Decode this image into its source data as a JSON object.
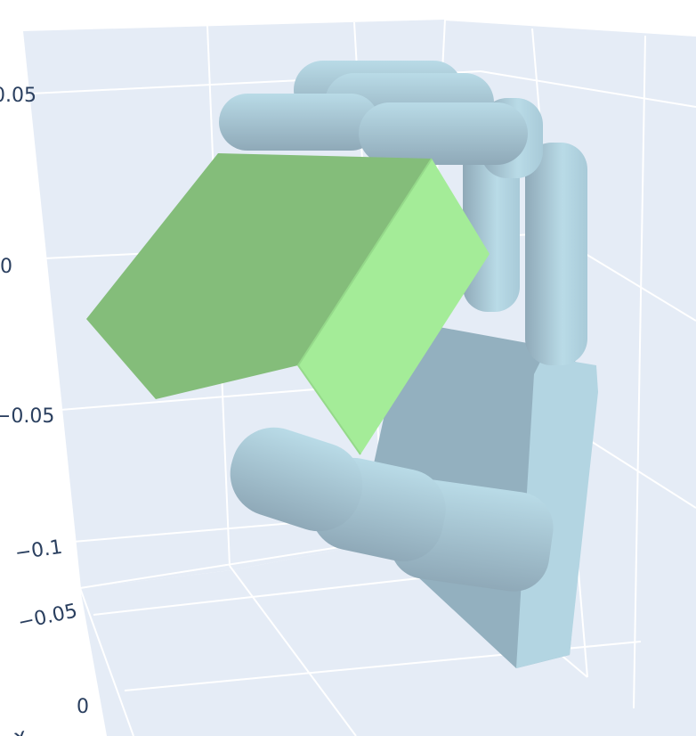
{
  "chart_data": {
    "type": "3d-mesh",
    "title": "",
    "background_color": "#e5ecf6",
    "grid_color": "#ffffff",
    "grid": true,
    "axes": {
      "x": {
        "title": "x",
        "tick_labels": [
          "−0.05",
          "0"
        ]
      },
      "z": {
        "tick_labels": [
          "0.05",
          "0",
          "−0.05",
          "−0.1"
        ]
      }
    },
    "meshes": [
      {
        "name": "",
        "shape": "hand",
        "color": "#add8e6"
      },
      {
        "name": "",
        "shape": "cube",
        "color": "#90ee90"
      }
    ]
  }
}
